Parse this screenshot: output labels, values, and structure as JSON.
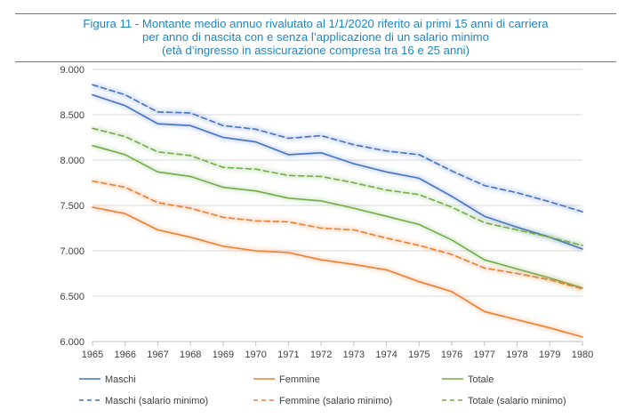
{
  "figure": {
    "title_line1": "Figura 11 - Montante medio annuo rivalutato al 1/1/2020 riferito ai primi 15 anni di carriera",
    "title_line2": "per anno di nascita con e senza l’applicazione di un salario minimo",
    "title_line3": "(età d’ingresso in assicurazione compresa tra 16 e 25 anni)"
  },
  "chart_data": {
    "type": "line",
    "title": "Figura 11 - Montante medio annuo rivalutato al 1/1/2020 riferito ai primi 15 anni di carriera per anno di nascita con e senza l’applicazione di un salario minimo (età d’ingresso in assicurazione compresa tra 16 e 25 anni)",
    "xlabel": "",
    "ylabel": "",
    "x": [
      "1965",
      "1966",
      "1967",
      "1968",
      "1969",
      "1970",
      "1971",
      "1972",
      "1973",
      "1974",
      "1975",
      "1976",
      "1977",
      "1978",
      "1979",
      "1980"
    ],
    "ylim": [
      6000,
      9000
    ],
    "yticks": [
      6000,
      6500,
      7000,
      7500,
      8000,
      8500,
      9000
    ],
    "ytick_labels": [
      "6.000",
      "6.500",
      "7.000",
      "7.500",
      "8.000",
      "8.500",
      "9.000"
    ],
    "grid": true,
    "legend_position": "bottom",
    "series": [
      {
        "name": "Maschi",
        "color": "#4472c4",
        "dash": "solid",
        "values": [
          8720,
          8600,
          8400,
          8380,
          8250,
          8200,
          8060,
          8080,
          7960,
          7870,
          7800,
          7600,
          7380,
          7260,
          7150,
          7020
        ]
      },
      {
        "name": "Femmine",
        "color": "#ed7d31",
        "dash": "solid",
        "values": [
          7480,
          7410,
          7230,
          7150,
          7050,
          7000,
          6980,
          6900,
          6850,
          6790,
          6660,
          6550,
          6330,
          6240,
          6150,
          6050
        ]
      },
      {
        "name": "Totale",
        "color": "#70ad47",
        "dash": "solid",
        "values": [
          8160,
          8060,
          7870,
          7820,
          7700,
          7660,
          7580,
          7550,
          7470,
          7380,
          7290,
          7120,
          6900,
          6800,
          6700,
          6590
        ]
      },
      {
        "name": "Maschi (salario minimo)",
        "color": "#4472c4",
        "dash": "dashed",
        "values": [
          8830,
          8720,
          8530,
          8520,
          8380,
          8340,
          8240,
          8270,
          8170,
          8100,
          8060,
          7880,
          7720,
          7640,
          7540,
          7430
        ]
      },
      {
        "name": "Femmine (salario minimo)",
        "color": "#ed7d31",
        "dash": "dashed",
        "values": [
          7770,
          7700,
          7530,
          7470,
          7370,
          7330,
          7320,
          7250,
          7230,
          7140,
          7060,
          6960,
          6810,
          6750,
          6680,
          6580
        ]
      },
      {
        "name": "Totale (salario minimo)",
        "color": "#70ad47",
        "dash": "dashed",
        "values": [
          8350,
          8260,
          8090,
          8050,
          7920,
          7900,
          7830,
          7820,
          7750,
          7670,
          7620,
          7480,
          7310,
          7230,
          7150,
          7060
        ]
      }
    ]
  }
}
